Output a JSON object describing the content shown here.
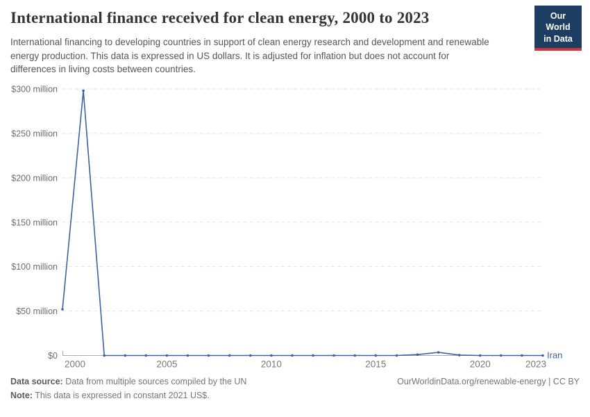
{
  "header": {
    "title": "International finance received for clean energy, 2000 to 2023",
    "subtitle": "International financing to developing countries in support of clean energy research and development and renewable energy production. This data is expressed in US dollars. It is adjusted for inflation but does not account for differences in living costs between countries."
  },
  "logo": {
    "line1": "Our World",
    "line2": "in Data",
    "bg_color": "#1d3d63",
    "accent_color": "#d0343f"
  },
  "chart_data": {
    "type": "line",
    "x": [
      2000,
      2001,
      2002,
      2003,
      2004,
      2005,
      2006,
      2007,
      2008,
      2009,
      2010,
      2011,
      2012,
      2013,
      2014,
      2015,
      2016,
      2017,
      2018,
      2019,
      2020,
      2021,
      2022,
      2023
    ],
    "series": [
      {
        "name": "Iran",
        "color": "#3d62a0",
        "values": [
          52,
          298,
          0,
          0,
          0,
          0,
          0,
          0,
          0,
          0,
          0,
          0,
          0,
          0,
          0,
          0,
          0,
          1,
          3.5,
          0.5,
          0,
          0,
          0,
          0
        ]
      }
    ],
    "unit": "US$ million",
    "ylim": [
      0,
      300
    ],
    "yticks": [
      {
        "value": 0,
        "label": "$0"
      },
      {
        "value": 50,
        "label": "$50 million"
      },
      {
        "value": 100,
        "label": "$100 million"
      },
      {
        "value": 150,
        "label": "$150 million"
      },
      {
        "value": 200,
        "label": "$200 million"
      },
      {
        "value": 250,
        "label": "$250 million"
      },
      {
        "value": 300,
        "label": "$300 million"
      }
    ],
    "xticks": [
      2000,
      2005,
      2010,
      2015,
      2020,
      2023
    ],
    "grid": "horizontal-dashed",
    "legend": "end-of-line-label",
    "grid_color": "#e3e3e3",
    "axis_color": "#a9a9a9"
  },
  "footer": {
    "source_label": "Data source:",
    "source_text": "Data from multiple sources compiled by the UN",
    "note_label": "Note:",
    "note_text": "This data is expressed in constant 2021 US$.",
    "link": "OurWorldinData.org/renewable-energy | CC BY"
  }
}
